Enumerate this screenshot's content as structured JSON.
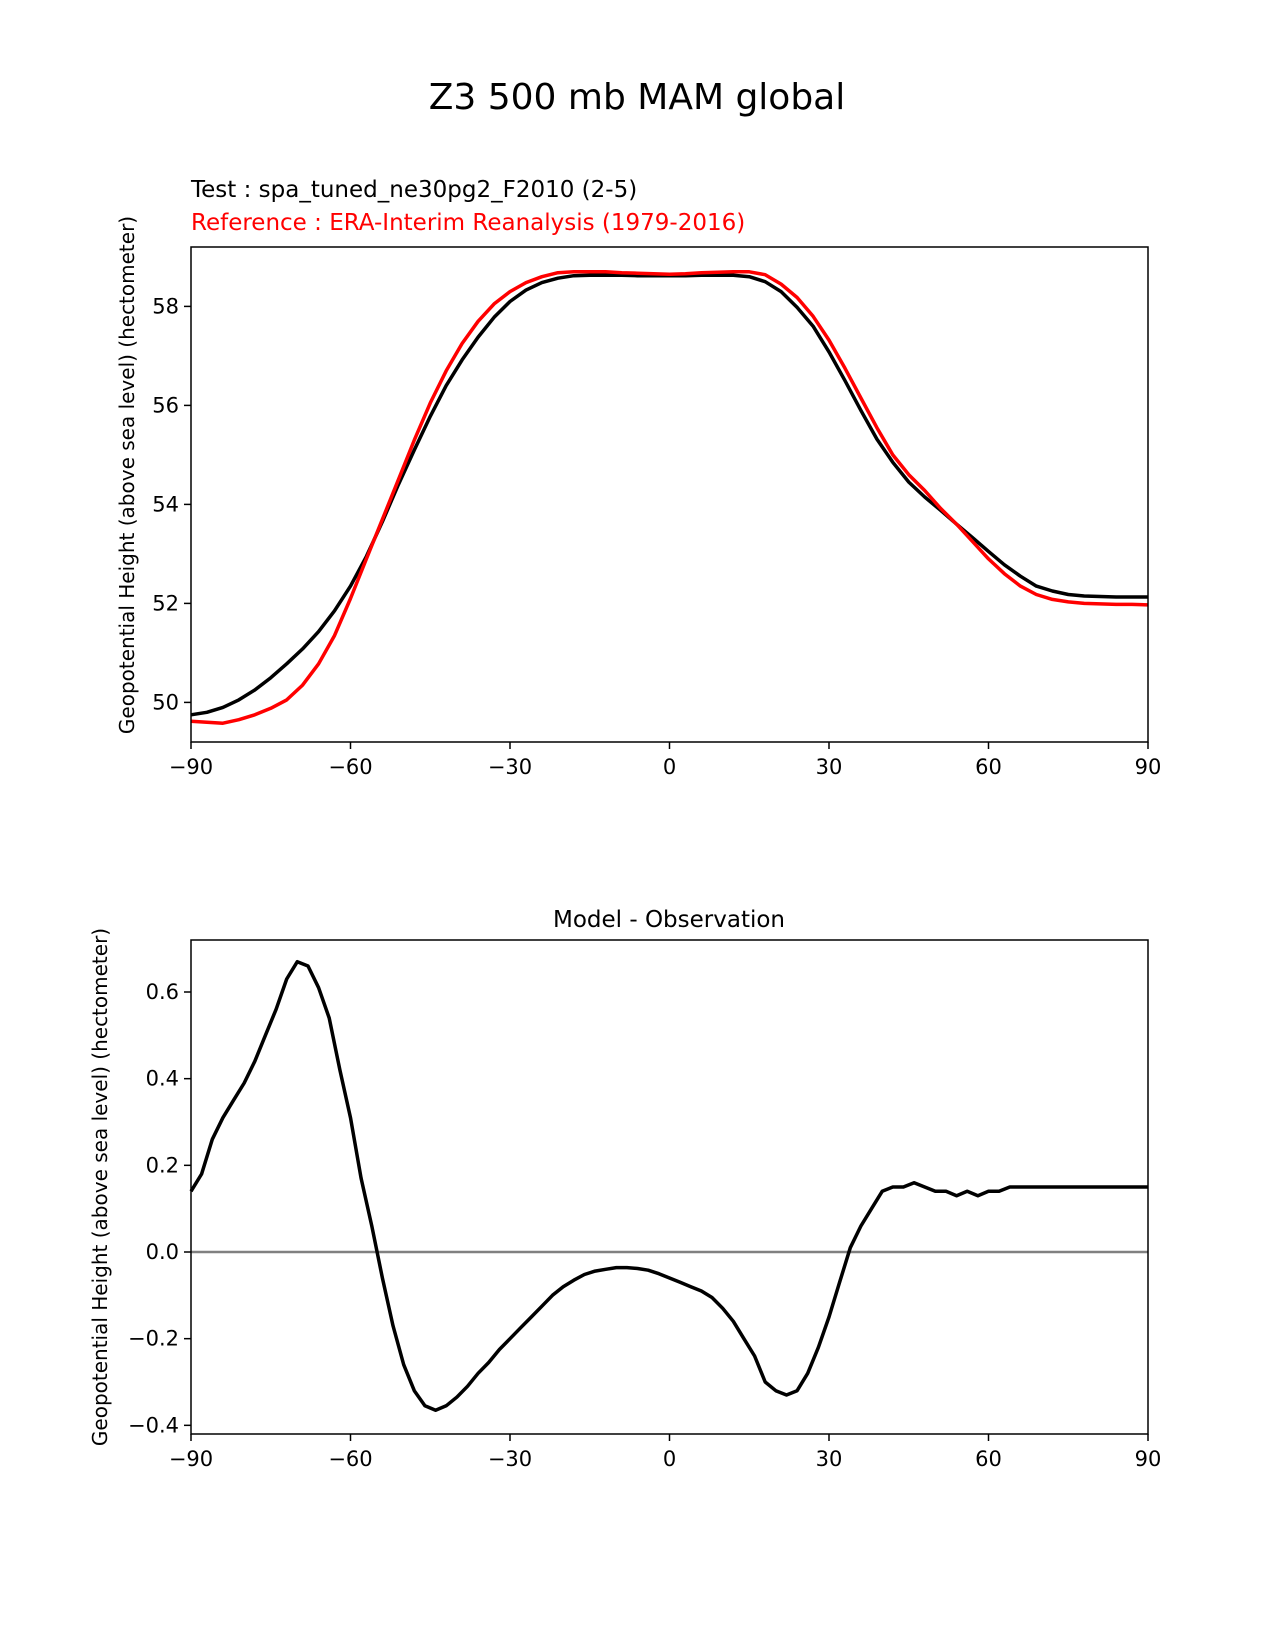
{
  "figure": {
    "suptitle": "Z3 500 mb MAM global"
  },
  "chart_data": [
    {
      "type": "line",
      "title_test": "Test : spa_tuned_ne30pg2_F2010 (2-5)",
      "title_reference": "Reference : ERA-Interim Reanalysis (1979-2016)",
      "xlabel": "",
      "ylabel": "Geopotential Height (above sea level) (hectometer)",
      "xlim": [
        -90,
        90
      ],
      "ylim": [
        49.2,
        59.2
      ],
      "xticks": [
        -90,
        -60,
        -30,
        0,
        30,
        60,
        90
      ],
      "xtick_labels": [
        "−90",
        "−60",
        "−30",
        "0",
        "30",
        "60",
        "90"
      ],
      "yticks": [
        50,
        52,
        54,
        56,
        58
      ],
      "ytick_labels": [
        "50",
        "52",
        "54",
        "56",
        "58"
      ],
      "grid": false,
      "series": [
        {
          "role": "test",
          "color": "#000000",
          "x": [
            -90,
            -87,
            -84,
            -81,
            -78,
            -75,
            -72,
            -69,
            -66,
            -63,
            -60,
            -57,
            -54,
            -51,
            -48,
            -45,
            -42,
            -39,
            -36,
            -33,
            -30,
            -27,
            -24,
            -21,
            -18,
            -15,
            -12,
            -9,
            -6,
            -3,
            0,
            3,
            6,
            9,
            12,
            15,
            18,
            21,
            24,
            27,
            30,
            33,
            36,
            39,
            42,
            45,
            48,
            51,
            54,
            57,
            60,
            63,
            66,
            69,
            72,
            75,
            78,
            81,
            84,
            87,
            90
          ],
          "y": [
            49.75,
            49.8,
            49.9,
            50.05,
            50.25,
            50.5,
            50.78,
            51.08,
            51.43,
            51.85,
            52.35,
            52.95,
            53.65,
            54.4,
            55.1,
            55.78,
            56.4,
            56.92,
            57.38,
            57.78,
            58.1,
            58.33,
            58.48,
            58.57,
            58.62,
            58.63,
            58.63,
            58.63,
            58.62,
            58.62,
            58.62,
            58.62,
            58.63,
            58.63,
            58.63,
            58.6,
            58.5,
            58.3,
            57.98,
            57.6,
            57.08,
            56.5,
            55.9,
            55.32,
            54.85,
            54.45,
            54.15,
            53.88,
            53.6,
            53.33,
            53.05,
            52.78,
            52.55,
            52.35,
            52.25,
            52.18,
            52.15,
            52.14,
            52.13,
            52.13,
            52.13
          ]
        },
        {
          "role": "reference",
          "color": "#ff0000",
          "x": [
            -90,
            -87,
            -84,
            -81,
            -78,
            -75,
            -72,
            -69,
            -66,
            -63,
            -60,
            -57,
            -54,
            -51,
            -48,
            -45,
            -42,
            -39,
            -36,
            -33,
            -30,
            -27,
            -24,
            -21,
            -18,
            -15,
            -12,
            -9,
            -6,
            -3,
            0,
            3,
            6,
            9,
            12,
            15,
            18,
            21,
            24,
            27,
            30,
            33,
            36,
            39,
            42,
            45,
            48,
            51,
            54,
            57,
            60,
            63,
            66,
            69,
            72,
            75,
            78,
            81,
            84,
            87,
            90
          ],
          "y": [
            49.62,
            49.6,
            49.58,
            49.65,
            49.75,
            49.88,
            50.05,
            50.35,
            50.78,
            51.35,
            52.1,
            52.9,
            53.7,
            54.5,
            55.3,
            56.05,
            56.7,
            57.25,
            57.7,
            58.05,
            58.3,
            58.48,
            58.6,
            58.68,
            58.7,
            58.7,
            58.7,
            58.68,
            58.67,
            58.66,
            58.65,
            58.66,
            58.68,
            58.69,
            58.7,
            58.7,
            58.64,
            58.45,
            58.18,
            57.8,
            57.32,
            56.75,
            56.15,
            55.55,
            55.0,
            54.6,
            54.28,
            53.92,
            53.6,
            53.25,
            52.9,
            52.6,
            52.35,
            52.18,
            52.08,
            52.03,
            52.0,
            51.99,
            51.98,
            51.98,
            51.97
          ]
        }
      ]
    },
    {
      "type": "line",
      "title": "Model - Observation",
      "xlabel": "",
      "ylabel": "Geopotential Height (above sea level) (hectometer)",
      "xlim": [
        -90,
        90
      ],
      "ylim": [
        -0.42,
        0.72
      ],
      "xticks": [
        -90,
        -60,
        -30,
        0,
        30,
        60,
        90
      ],
      "xtick_labels": [
        "−90",
        "−60",
        "−30",
        "0",
        "30",
        "60",
        "90"
      ],
      "yticks": [
        -0.4,
        -0.2,
        0.0,
        0.2,
        0.4,
        0.6
      ],
      "ytick_labels": [
        "−0.4",
        "−0.2",
        "0.0",
        "0.2",
        "0.4",
        "0.6"
      ],
      "grid": false,
      "zero_line_color": "#808080",
      "series": [
        {
          "role": "difference",
          "color": "#000000",
          "x": [
            -90,
            -88,
            -86,
            -84,
            -82,
            -80,
            -78,
            -76,
            -74,
            -72,
            -70,
            -68,
            -66,
            -64,
            -62,
            -60,
            -58,
            -56,
            -54,
            -52,
            -50,
            -48,
            -46,
            -44,
            -42,
            -40,
            -38,
            -36,
            -34,
            -32,
            -30,
            -28,
            -26,
            -24,
            -22,
            -20,
            -18,
            -16,
            -14,
            -12,
            -10,
            -8,
            -6,
            -4,
            -2,
            0,
            2,
            4,
            6,
            8,
            10,
            12,
            14,
            16,
            18,
            20,
            22,
            24,
            26,
            28,
            30,
            32,
            34,
            36,
            38,
            40,
            42,
            44,
            46,
            48,
            50,
            52,
            54,
            56,
            58,
            60,
            62,
            64,
            66,
            68,
            70,
            72,
            74,
            76,
            78,
            80,
            82,
            84,
            86,
            88,
            90
          ],
          "y": [
            0.14,
            0.18,
            0.26,
            0.31,
            0.35,
            0.39,
            0.44,
            0.5,
            0.56,
            0.63,
            0.67,
            0.66,
            0.61,
            0.54,
            0.42,
            0.31,
            0.17,
            0.06,
            -0.06,
            -0.17,
            -0.26,
            -0.32,
            -0.355,
            -0.365,
            -0.355,
            -0.335,
            -0.31,
            -0.28,
            -0.255,
            -0.225,
            -0.2,
            -0.175,
            -0.15,
            -0.125,
            -0.1,
            -0.08,
            -0.065,
            -0.052,
            -0.044,
            -0.04,
            -0.036,
            -0.036,
            -0.038,
            -0.042,
            -0.05,
            -0.06,
            -0.07,
            -0.08,
            -0.09,
            -0.105,
            -0.13,
            -0.16,
            -0.2,
            -0.24,
            -0.3,
            -0.32,
            -0.33,
            -0.32,
            -0.28,
            -0.22,
            -0.15,
            -0.07,
            0.01,
            0.06,
            0.1,
            0.14,
            0.15,
            0.15,
            0.16,
            0.15,
            0.14,
            0.14,
            0.13,
            0.14,
            0.13,
            0.14,
            0.14,
            0.15,
            0.15,
            0.15,
            0.15,
            0.15,
            0.15,
            0.15,
            0.15,
            0.15,
            0.15,
            0.15,
            0.15,
            0.15,
            0.15
          ]
        }
      ]
    }
  ]
}
